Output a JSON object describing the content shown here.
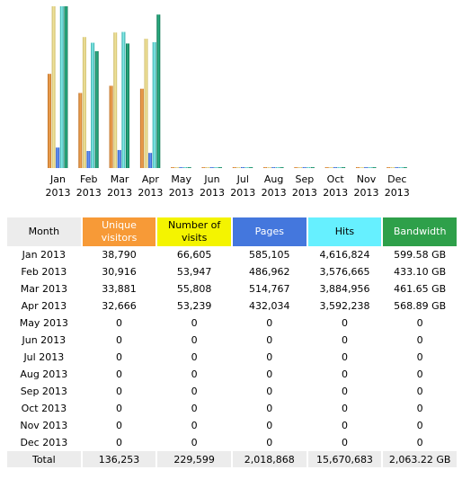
{
  "colors": {
    "unique_visitors": "#f79a37",
    "visits": "#f4f400",
    "pages": "#4477dd",
    "hits": "#66f0ff",
    "bandwidth": "#2ea04a"
  },
  "chart_data": {
    "type": "bar",
    "categories": [
      [
        "Jan",
        "2013"
      ],
      [
        "Feb",
        "2013"
      ],
      [
        "Mar",
        "2013"
      ],
      [
        "Apr",
        "2013"
      ],
      [
        "May",
        "2013"
      ],
      [
        "Jun",
        "2013"
      ],
      [
        "Jul",
        "2013"
      ],
      [
        "Aug",
        "2013"
      ],
      [
        "Sep",
        "2013"
      ],
      [
        "Oct",
        "2013"
      ],
      [
        "Nov",
        "2013"
      ],
      [
        "Dec",
        "2013"
      ]
    ],
    "series": [
      {
        "key": "unique_visitors",
        "values": [
          38790,
          30916,
          33881,
          32666,
          0,
          0,
          0,
          0,
          0,
          0,
          0,
          0
        ]
      },
      {
        "key": "visits",
        "values": [
          66605,
          53947,
          55808,
          53239,
          0,
          0,
          0,
          0,
          0,
          0,
          0,
          0
        ]
      },
      {
        "key": "pages",
        "values": [
          585105,
          486962,
          514767,
          432034,
          0,
          0,
          0,
          0,
          0,
          0,
          0,
          0
        ]
      },
      {
        "key": "hits",
        "values": [
          4616824,
          3576665,
          3884956,
          3592238,
          0,
          0,
          0,
          0,
          0,
          0,
          0,
          0
        ]
      },
      {
        "key": "bandwidth",
        "values": [
          599.58,
          433.1,
          461.65,
          568.89,
          0,
          0,
          0,
          0,
          0,
          0,
          0,
          0
        ]
      }
    ],
    "scale_groups": [
      [
        "unique_visitors",
        "visits"
      ],
      [
        "pages",
        "hits"
      ],
      [
        "bandwidth"
      ]
    ]
  },
  "table": {
    "headers": {
      "month": "Month",
      "unique_visitors": "Unique visitors",
      "visits": "Number of visits",
      "pages": "Pages",
      "hits": "Hits",
      "bandwidth": "Bandwidth"
    },
    "rows": [
      {
        "month": "Jan 2013",
        "unique": "38,790",
        "visits": "66,605",
        "pages": "585,105",
        "hits": "4,616,824",
        "bandwidth": "599.58 GB"
      },
      {
        "month": "Feb 2013",
        "unique": "30,916",
        "visits": "53,947",
        "pages": "486,962",
        "hits": "3,576,665",
        "bandwidth": "433.10 GB"
      },
      {
        "month": "Mar 2013",
        "unique": "33,881",
        "visits": "55,808",
        "pages": "514,767",
        "hits": "3,884,956",
        "bandwidth": "461.65 GB"
      },
      {
        "month": "Apr 2013",
        "unique": "32,666",
        "visits": "53,239",
        "pages": "432,034",
        "hits": "3,592,238",
        "bandwidth": "568.89 GB"
      },
      {
        "month": "May 2013",
        "unique": "0",
        "visits": "0",
        "pages": "0",
        "hits": "0",
        "bandwidth": "0"
      },
      {
        "month": "Jun 2013",
        "unique": "0",
        "visits": "0",
        "pages": "0",
        "hits": "0",
        "bandwidth": "0"
      },
      {
        "month": "Jul 2013",
        "unique": "0",
        "visits": "0",
        "pages": "0",
        "hits": "0",
        "bandwidth": "0"
      },
      {
        "month": "Aug 2013",
        "unique": "0",
        "visits": "0",
        "pages": "0",
        "hits": "0",
        "bandwidth": "0"
      },
      {
        "month": "Sep 2013",
        "unique": "0",
        "visits": "0",
        "pages": "0",
        "hits": "0",
        "bandwidth": "0"
      },
      {
        "month": "Oct 2013",
        "unique": "0",
        "visits": "0",
        "pages": "0",
        "hits": "0",
        "bandwidth": "0"
      },
      {
        "month": "Nov 2013",
        "unique": "0",
        "visits": "0",
        "pages": "0",
        "hits": "0",
        "bandwidth": "0"
      },
      {
        "month": "Dec 2013",
        "unique": "0",
        "visits": "0",
        "pages": "0",
        "hits": "0",
        "bandwidth": "0"
      }
    ],
    "total": {
      "label": "Total",
      "unique": "136,253",
      "visits": "229,599",
      "pages": "2,018,868",
      "hits": "15,670,683",
      "bandwidth": "2,063.22 GB"
    }
  }
}
